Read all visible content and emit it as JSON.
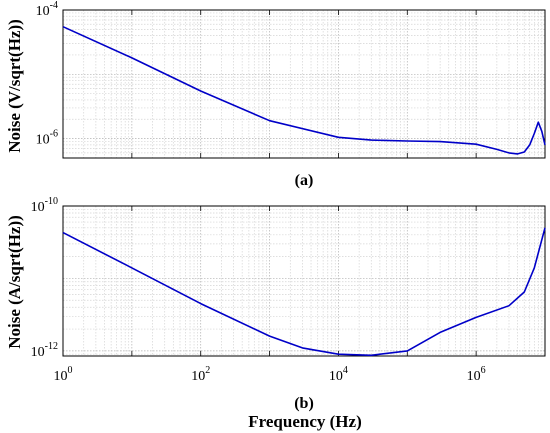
{
  "chart_data": [
    {
      "id": "a",
      "type": "line",
      "panel_label": "(a)",
      "ylabel": "Noise (V/sqrt(Hz))",
      "xlabel": "",
      "xscale": "log",
      "yscale": "log",
      "xlim": [
        1,
        10000000
      ],
      "ylim": [
        5e-07,
        0.0001
      ],
      "grid": true,
      "y_ticks": [
        {
          "base": "10",
          "exp": "-4",
          "value": 0.0001
        },
        {
          "base": "10",
          "exp": "-6",
          "value": 1e-06
        }
      ],
      "series": [
        {
          "color": "#0000c8",
          "x": [
            1,
            10,
            100,
            1000,
            10000,
            30000,
            100000,
            300000,
            1000000,
            2000000,
            3000000,
            4000000,
            5000000,
            6000000,
            7000000,
            8000000,
            9000000,
            10000000
          ],
          "y": [
            5.5e-05,
            1.8e-05,
            5.5e-06,
            1.9e-06,
            1.05e-06,
            9.5e-07,
            9.2e-07,
            9e-07,
            8.2e-07,
            6.8e-07,
            6e-07,
            5.8e-07,
            6.2e-07,
            8e-07,
            1.2e-06,
            1.8e-06,
            1.3e-06,
            8e-07
          ]
        }
      ]
    },
    {
      "id": "b",
      "type": "line",
      "panel_label": "(b)",
      "ylabel": "Noise (A/sqrt(Hz))",
      "xlabel": "Frequency (Hz)",
      "xscale": "log",
      "yscale": "log",
      "xlim": [
        1,
        10000000
      ],
      "ylim": [
        8.5e-13,
        1e-10
      ],
      "grid": true,
      "x_ticks": [
        {
          "base": "10",
          "exp": "0",
          "value": 1
        },
        {
          "base": "10",
          "exp": "2",
          "value": 100
        },
        {
          "base": "10",
          "exp": "4",
          "value": 10000
        },
        {
          "base": "10",
          "exp": "6",
          "value": 1000000
        }
      ],
      "y_ticks": [
        {
          "base": "10",
          "exp": "-10",
          "value": 1e-10
        },
        {
          "base": "10",
          "exp": "-12",
          "value": 1e-12
        }
      ],
      "series": [
        {
          "color": "#0000c8",
          "x": [
            1,
            10,
            100,
            1000,
            3000,
            10000,
            30000,
            100000,
            300000,
            1000000,
            3000000,
            5000000,
            7000000,
            10000000
          ],
          "y": [
            4.3e-11,
            1.4e-11,
            4.5e-12,
            1.6e-12,
            1.1e-12,
            9e-13,
            8.7e-13,
            1e-12,
            1.8e-12,
            2.9e-12,
            4.2e-12,
            6.5e-12,
            1.4e-11,
            5e-11
          ]
        }
      ]
    }
  ]
}
